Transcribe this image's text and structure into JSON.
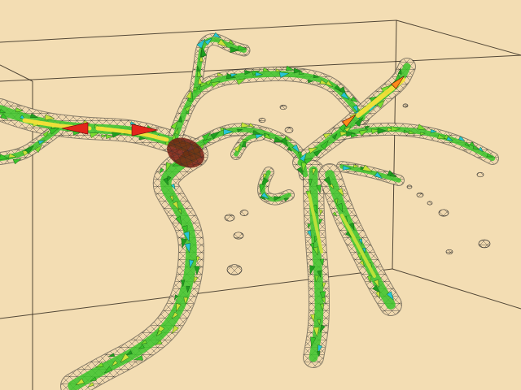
{
  "viewer": {
    "background_color": "#f3ddb3",
    "bounding_box_color": "#2a2218",
    "mesh_color": "#2b2b2b",
    "vessel_fill_color": "#f0d8ae",
    "vector_glyph_colors": [
      "#1f9e1f",
      "#39c52a",
      "#7bdc2f",
      "#c9e23a",
      "#ffe23a",
      "#ff8a1a",
      "#e3261c",
      "#26c6d6"
    ],
    "aneurysm_color": "#7a1e12",
    "icon": "3d-vessel-flow-visualization"
  }
}
